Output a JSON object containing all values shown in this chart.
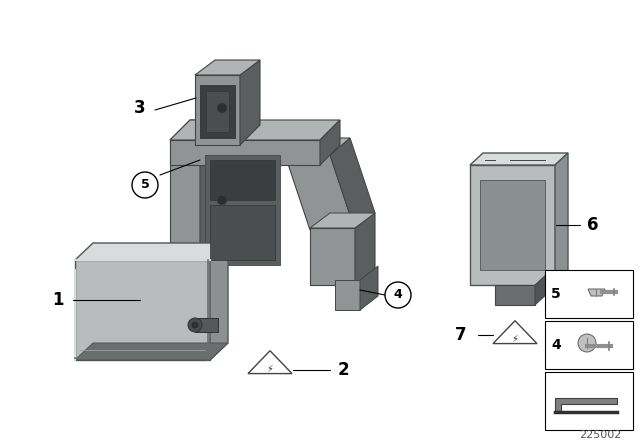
{
  "background_color": "#ffffff",
  "diagram_number": "225002",
  "colors": {
    "light_gray": "#b8bcbc",
    "mid_gray": "#8c9090",
    "dark_gray": "#6a6e6e",
    "lighter_gray": "#cdd1d1",
    "very_light": "#d8dcdc",
    "connector_dark": "#555858",
    "screen_dark": "#7a8080",
    "bracket_mid": "#909494",
    "bracket_dark": "#5a5e5e",
    "bracket_light": "#b0b4b4"
  }
}
